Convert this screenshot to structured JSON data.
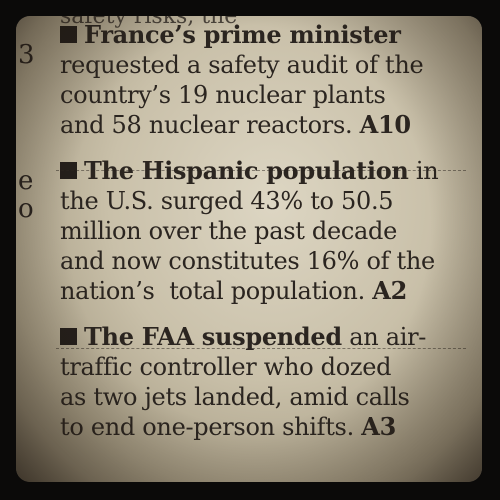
{
  "cutoff_top": "safety risks, the",
  "left_margin_letters": [
    "3",
    "e",
    "o"
  ],
  "items": [
    {
      "lead": "France’s prime minister",
      "body_lines": [
        "requested a safety audit of the",
        "country’s 19 nuclear plants",
        "and 58 nuclear reactors."
      ],
      "ref": "A10"
    },
    {
      "lead": "The Hispanic population",
      "lead_tail": " in",
      "body_lines": [
        "the U.S. surged 43% to 50.5",
        "million over the past decade",
        "and now constitutes 16% of the",
        "nation’s  total population."
      ],
      "ref": "A2"
    },
    {
      "lead": "The FAA suspended",
      "lead_tail": " an air-",
      "body_lines": [
        "traffic controller who dozed",
        "as two jets landed, amid calls",
        "to end one-person shifts."
      ],
      "ref": "A3"
    }
  ]
}
